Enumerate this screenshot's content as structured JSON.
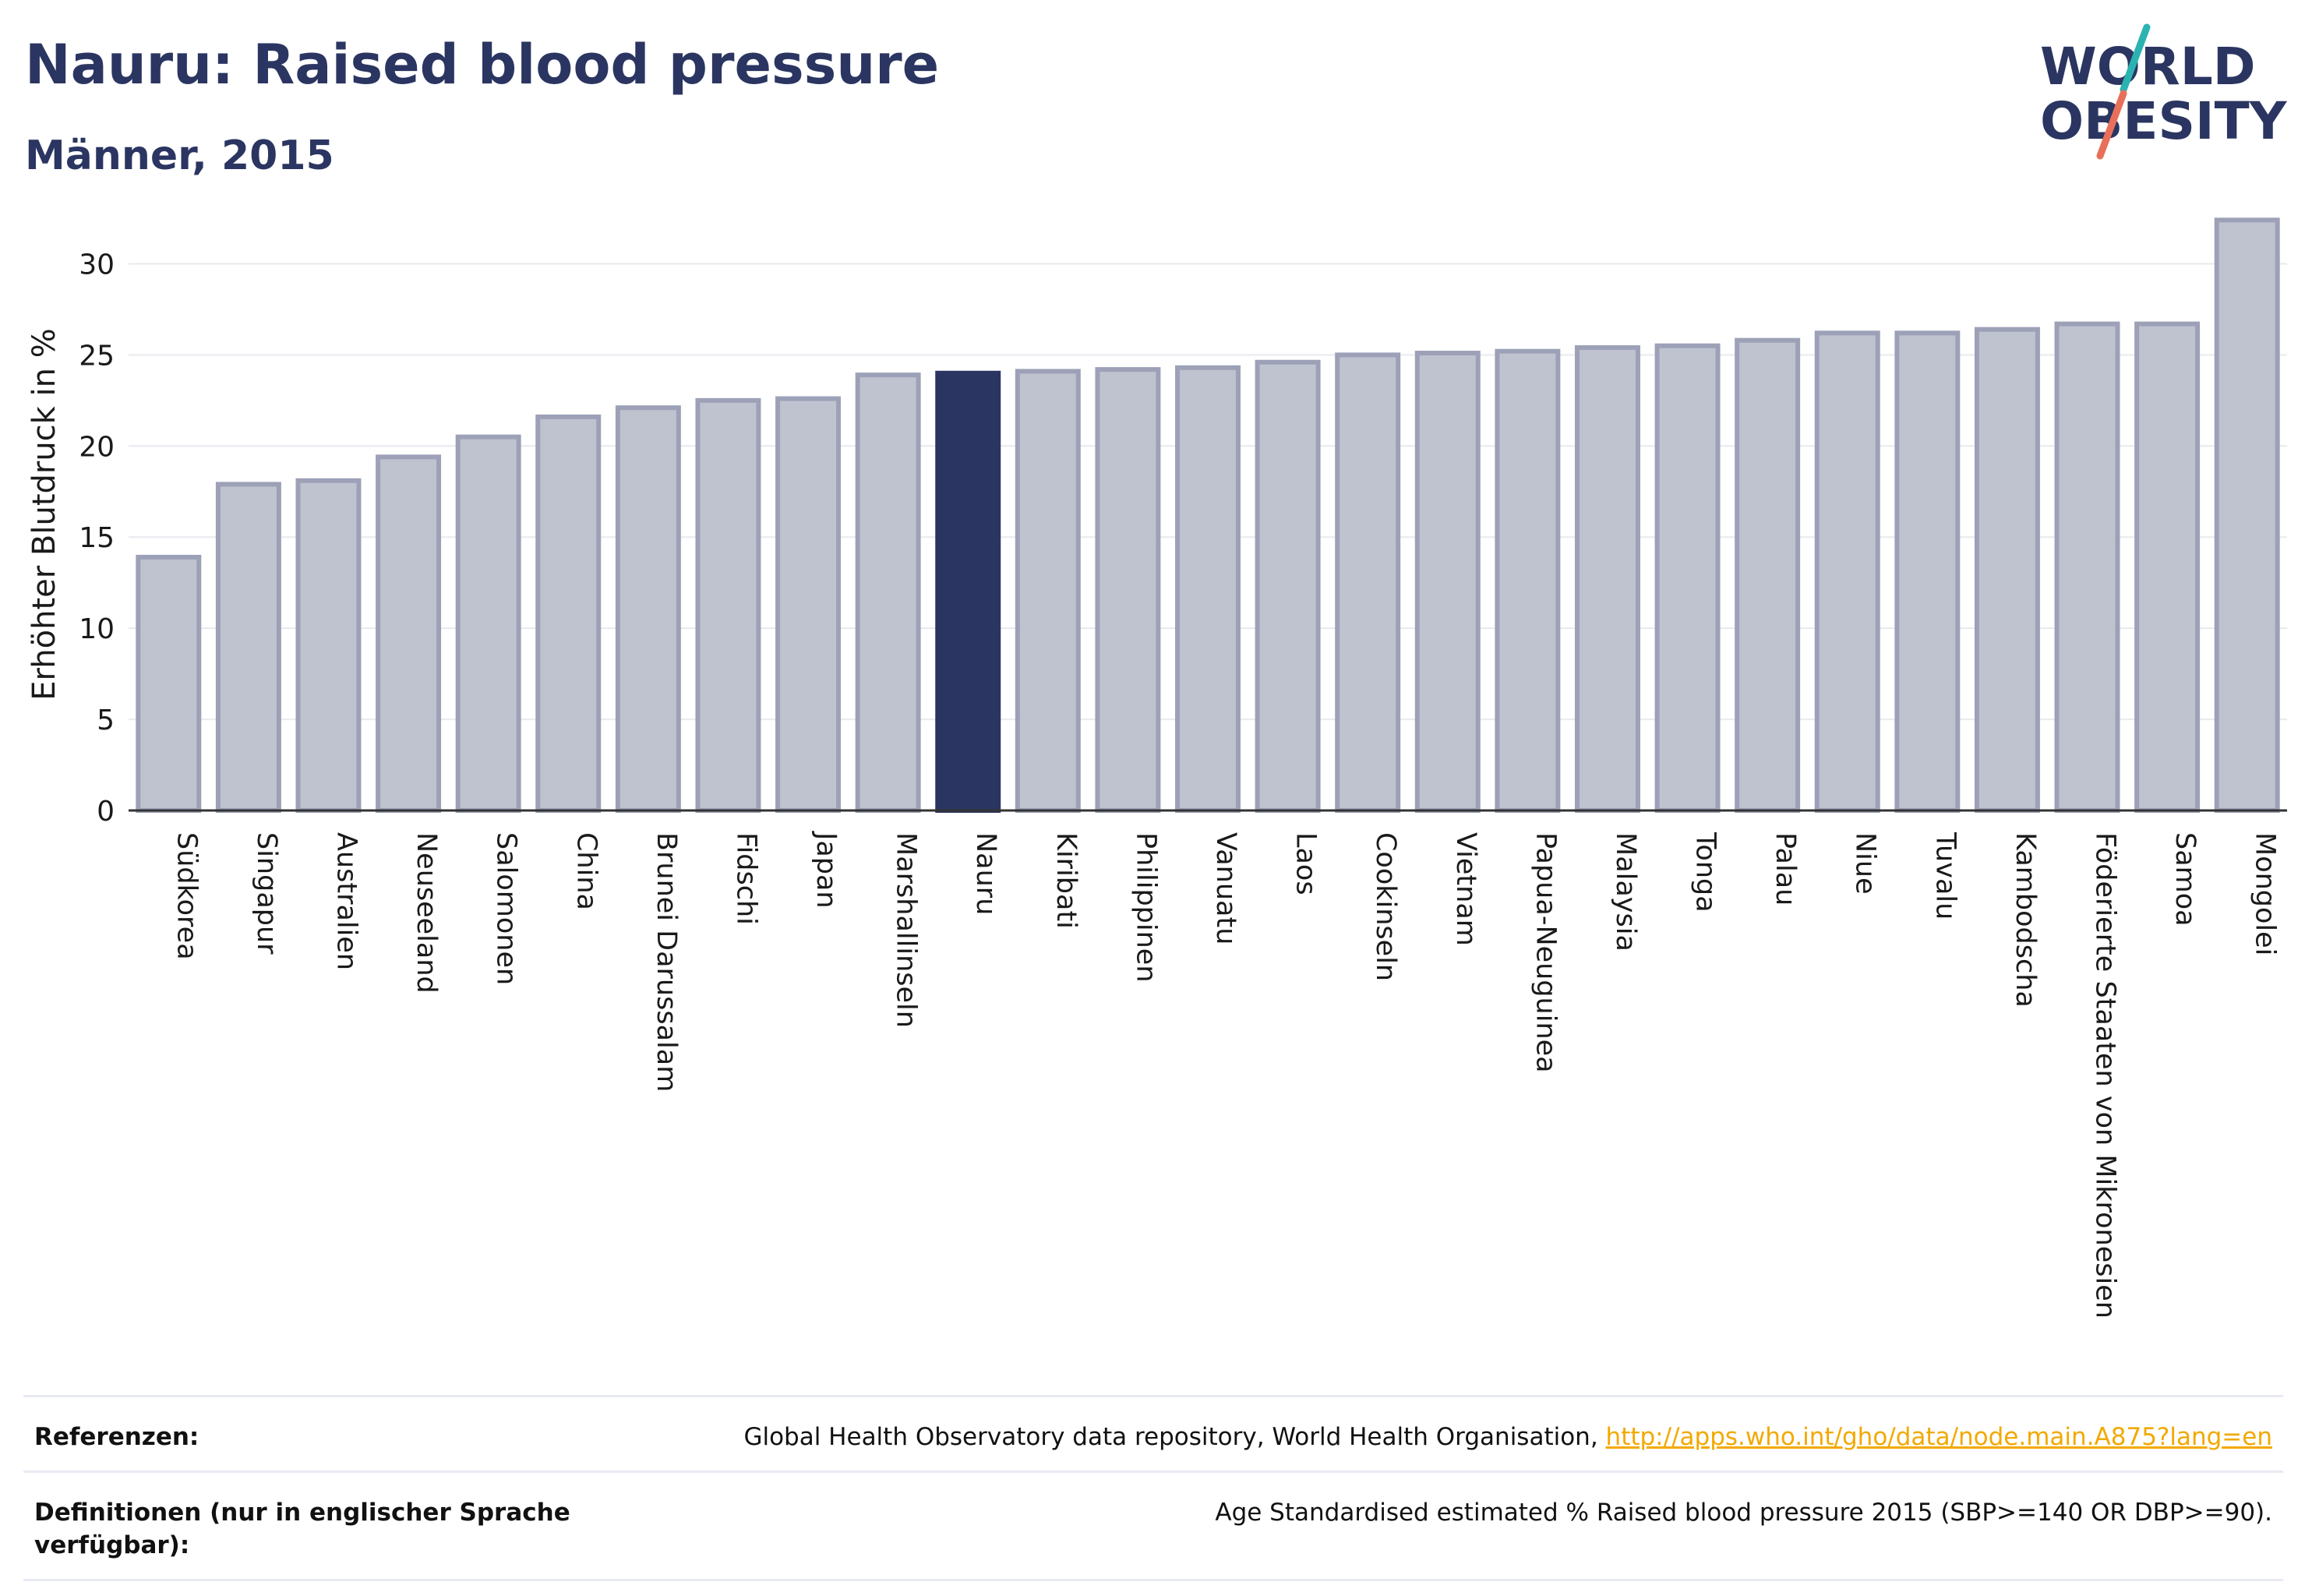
{
  "title": "Nauru: Raised blood pressure",
  "subtitle": "Männer, 2015",
  "logo": {
    "line1": "WORLD",
    "line2": "OBESITY",
    "text_color": "#2b3561",
    "slash_colors": [
      "#2bb3b1",
      "#e8705a"
    ]
  },
  "colors": {
    "bar_default": "#bfc2cf",
    "bar_default_stroke": "#9da1b7",
    "bar_highlight": "#2b3561",
    "grid": "#e9e9ef",
    "axis": "#333333",
    "text": "#1a1a1a"
  },
  "chart_data": {
    "type": "bar",
    "title": "Nauru: Raised blood pressure",
    "subtitle": "Männer, 2015",
    "xlabel": "",
    "ylabel": "Erhöhter Blutdruck in %",
    "ylim": [
      0,
      32.5
    ],
    "yticks": [
      0,
      5,
      10,
      15,
      20,
      25,
      30
    ],
    "grid": true,
    "highlight": "Nauru",
    "categories": [
      "Südkorea",
      "Singapur",
      "Australien",
      "Neuseeland",
      "Salomonen",
      "China",
      "Brunei Darussalam",
      "Fidschi",
      "Japan",
      "Marshallinseln",
      "Nauru",
      "Kiribati",
      "Philippinen",
      "Vanuatu",
      "Laos",
      "Cookinseln",
      "Vietnam",
      "Papua-Neuguinea",
      "Malaysia",
      "Tonga",
      "Palau",
      "Niue",
      "Tuvalu",
      "Kambodscha",
      "Föderierte Staaten von Mikronesien",
      "Samoa",
      "Mongolei"
    ],
    "values": [
      13.9,
      17.9,
      18.1,
      19.4,
      20.5,
      21.6,
      22.1,
      22.5,
      22.6,
      23.9,
      24.0,
      24.1,
      24.2,
      24.3,
      24.6,
      25.0,
      25.1,
      25.2,
      25.4,
      25.5,
      25.8,
      26.2,
      26.2,
      26.4,
      26.7,
      26.7,
      32.4
    ]
  },
  "footer": {
    "references_label": "Referenzen:",
    "references_text": "Global Health Observatory data repository, World Health Organisation, ",
    "references_link": "http://apps.who.int/gho/data/node.main.A875?lang=en",
    "definitions_label": "Definitionen (nur in englischer Sprache verfügbar):",
    "definitions_text": "Age Standardised estimated % Raised blood pressure 2015 (SBP>=140 OR DBP>=90)."
  }
}
